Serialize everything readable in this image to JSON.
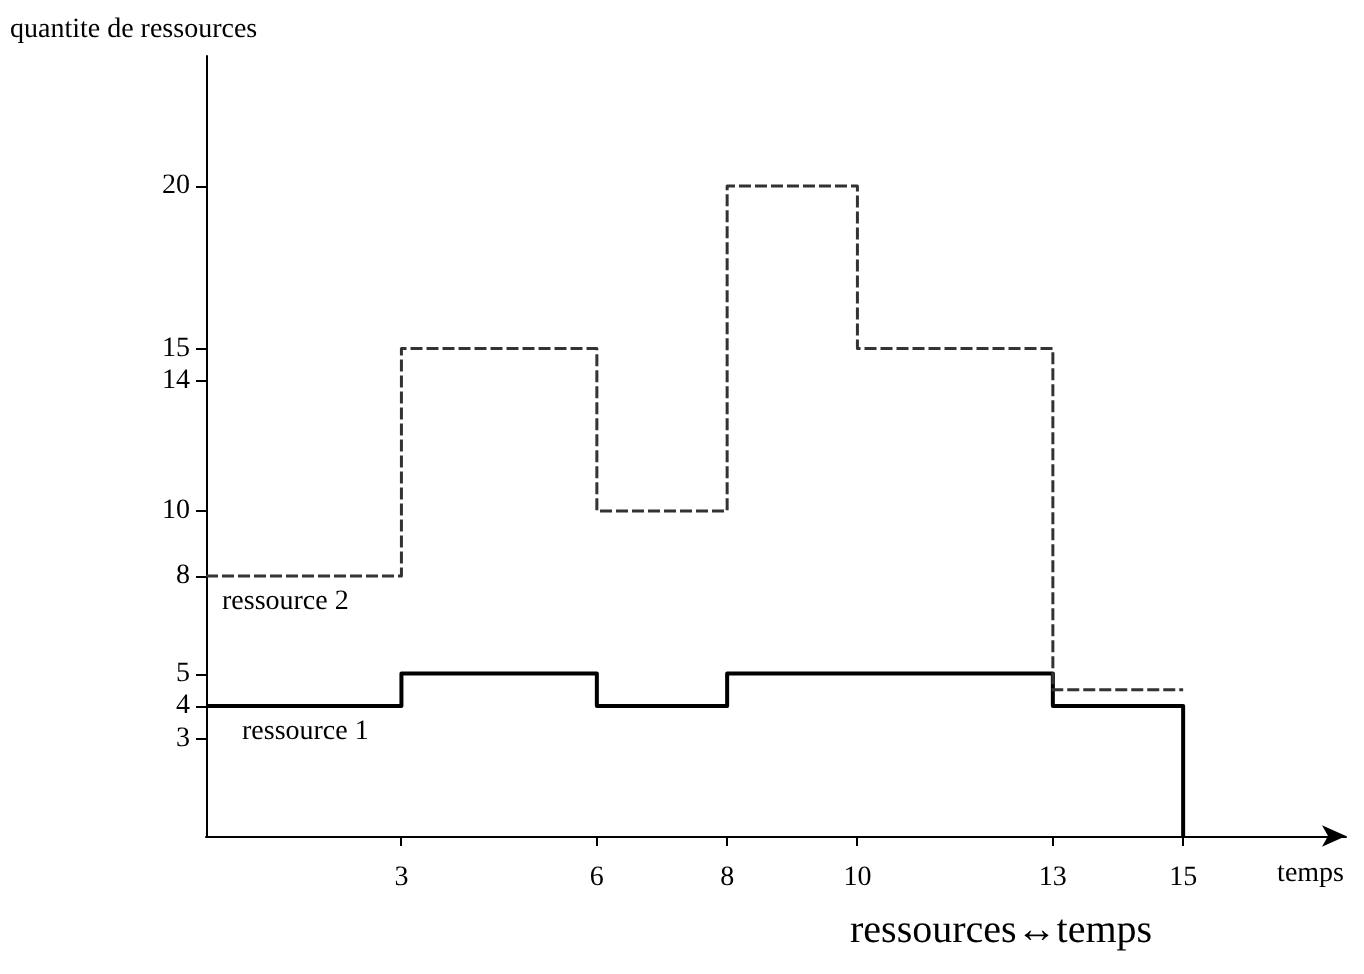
{
  "chart_data": {
    "type": "step",
    "xlabel": "temps",
    "ylabel": "quantite de ressources",
    "x": [
      0,
      3,
      6,
      8,
      13,
      15
    ],
    "series": [
      {
        "name": "ressource 1",
        "color": "#000000",
        "line_style": "solid",
        "values": [
          4,
          5,
          4,
          5,
          4,
          0
        ]
      },
      {
        "name": "ressource 2",
        "color": "#333333",
        "line_style": "dashed",
        "x": [
          0,
          3,
          6,
          8,
          10,
          13,
          15
        ],
        "values": [
          8,
          15,
          10,
          20,
          15,
          4.5,
          4.5
        ]
      }
    ],
    "xlim": [
      0,
      17.5
    ],
    "ylim": [
      0,
      24
    ],
    "xticks": [
      3,
      6,
      8,
      10,
      13,
      15
    ],
    "yticks": [
      3,
      4,
      5,
      8,
      10,
      14,
      15,
      20
    ],
    "grid": false,
    "legend": false,
    "annotations": [
      "ressources↔temps"
    ]
  }
}
